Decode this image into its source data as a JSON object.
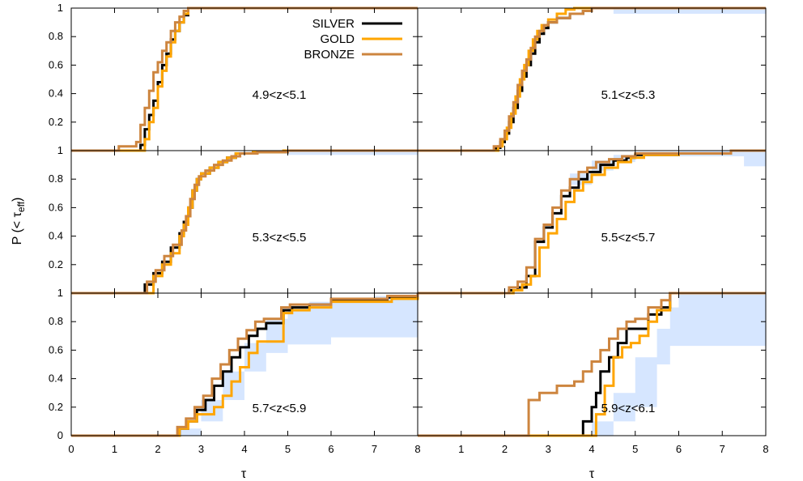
{
  "chart_data": {
    "type": "line",
    "ylabel": "P (< τ",
    "ylabel_sub": "eff",
    "ylabel_tail": ")",
    "xlabel": "τ",
    "xlim": [
      0,
      8
    ],
    "ylim": [
      0,
      1
    ],
    "x_ticks": [
      "0",
      "1",
      "2",
      "3",
      "4",
      "5",
      "6",
      "7",
      "8"
    ],
    "y_ticks": [
      "0",
      "0.2",
      "0.4",
      "0.6",
      "0.8",
      "1"
    ],
    "legend": {
      "placement": "top-right of first panel",
      "entries": [
        {
          "name": "SILVER",
          "color": "#000000"
        },
        {
          "name": "GOLD",
          "color": "#ffa500"
        },
        {
          "name": "BRONZE",
          "color": "#cd853f"
        }
      ]
    },
    "band_color": "#d6e6ff",
    "panels": [
      {
        "annotation": "4.9<z<5.1",
        "band": [],
        "series": [
          {
            "name": "SILVER",
            "x": [
              0,
              1.55,
              1.6,
              1.7,
              1.8,
              1.9,
              2.0,
              2.1,
              2.2,
              2.3,
              2.4,
              2.5,
              2.6,
              2.7,
              2.8,
              8
            ],
            "y": [
              0,
              0,
              0.04,
              0.15,
              0.25,
              0.35,
              0.48,
              0.6,
              0.68,
              0.78,
              0.84,
              0.9,
              0.95,
              1,
              1,
              1
            ]
          },
          {
            "name": "GOLD",
            "x": [
              0,
              1.6,
              1.7,
              1.8,
              1.9,
              2.0,
              2.1,
              2.2,
              2.3,
              2.4,
              2.5,
              2.6,
              2.7,
              2.8,
              8
            ],
            "y": [
              0,
              0,
              0.08,
              0.2,
              0.3,
              0.45,
              0.56,
              0.66,
              0.76,
              0.84,
              0.9,
              0.96,
              1,
              1,
              1
            ]
          },
          {
            "name": "BRONZE",
            "x": [
              0,
              1.05,
              1.1,
              1.4,
              1.5,
              1.6,
              1.7,
              1.8,
              1.9,
              2.0,
              2.1,
              2.2,
              2.3,
              2.4,
              2.5,
              2.6,
              2.7,
              8
            ],
            "y": [
              0,
              0,
              0.03,
              0.03,
              0.06,
              0.18,
              0.3,
              0.42,
              0.55,
              0.62,
              0.7,
              0.76,
              0.84,
              0.9,
              0.94,
              0.98,
              1,
              1
            ]
          }
        ]
      },
      {
        "annotation": "5.1<z<5.3",
        "band": [
          [
            0,
            0,
            0
          ],
          [
            4.0,
            0.99,
            1
          ],
          [
            4.5,
            0.96,
            1
          ],
          [
            8,
            0.96,
            1
          ]
        ],
        "series": [
          {
            "name": "SILVER",
            "x": [
              0,
              1.6,
              1.8,
              1.9,
              2.0,
              2.1,
              2.2,
              2.3,
              2.4,
              2.5,
              2.6,
              2.7,
              2.8,
              2.9,
              3.0,
              3.2,
              3.5,
              3.8,
              4.0,
              8
            ],
            "y": [
              0,
              0,
              0.02,
              0.06,
              0.12,
              0.2,
              0.3,
              0.42,
              0.52,
              0.6,
              0.68,
              0.76,
              0.82,
              0.86,
              0.9,
              0.93,
              0.96,
              0.98,
              1,
              1
            ]
          },
          {
            "name": "GOLD",
            "x": [
              0,
              1.65,
              1.85,
              1.95,
              2.05,
              2.15,
              2.25,
              2.35,
              2.45,
              2.55,
              2.65,
              2.75,
              2.85,
              3.0,
              3.2,
              3.4,
              3.6,
              8
            ],
            "y": [
              0,
              0,
              0.03,
              0.08,
              0.16,
              0.26,
              0.38,
              0.5,
              0.6,
              0.7,
              0.78,
              0.84,
              0.88,
              0.92,
              0.96,
              0.99,
              1,
              1
            ]
          },
          {
            "name": "BRONZE",
            "x": [
              0,
              1.55,
              1.75,
              1.9,
              2.0,
              2.1,
              2.2,
              2.3,
              2.4,
              2.5,
              2.6,
              2.7,
              2.8,
              2.9,
              3.0,
              3.2,
              3.5,
              3.8,
              4.0,
              8
            ],
            "y": [
              0,
              0,
              0.03,
              0.08,
              0.14,
              0.24,
              0.34,
              0.46,
              0.56,
              0.64,
              0.72,
              0.8,
              0.84,
              0.88,
              0.9,
              0.93,
              0.96,
              0.98,
              1,
              1
            ]
          }
        ]
      },
      {
        "annotation": "5.3<z<5.5",
        "band": [
          [
            0,
            0,
            0
          ],
          [
            4.5,
            0.99,
            1
          ],
          [
            5,
            0.97,
            1
          ],
          [
            8,
            0.97,
            1
          ]
        ],
        "series": [
          {
            "name": "SILVER",
            "x": [
              0,
              1.55,
              1.7,
              1.9,
              2.1,
              2.3,
              2.5,
              2.6,
              2.7,
              2.8,
              2.9,
              3.0,
              3.2,
              3.4,
              3.6,
              3.8,
              4.2,
              5.0,
              8
            ],
            "y": [
              0,
              0,
              0.06,
              0.14,
              0.22,
              0.32,
              0.42,
              0.5,
              0.6,
              0.72,
              0.8,
              0.84,
              0.88,
              0.92,
              0.95,
              0.98,
              0.99,
              1,
              1
            ]
          },
          {
            "name": "GOLD",
            "x": [
              0,
              1.75,
              1.9,
              2.1,
              2.3,
              2.5,
              2.6,
              2.7,
              2.8,
              2.9,
              3.0,
              3.2,
              3.4,
              3.6,
              3.8,
              4.2,
              4.9,
              8
            ],
            "y": [
              0,
              0,
              0.12,
              0.2,
              0.28,
              0.4,
              0.48,
              0.6,
              0.72,
              0.8,
              0.84,
              0.88,
              0.92,
              0.95,
              0.98,
              0.99,
              1,
              1
            ]
          },
          {
            "name": "BRONZE",
            "x": [
              0,
              1.6,
              1.75,
              1.95,
              2.15,
              2.35,
              2.55,
              2.65,
              2.75,
              2.85,
              2.95,
              3.1,
              3.3,
              3.5,
              3.7,
              3.9,
              4.3,
              5.0,
              8
            ],
            "y": [
              0,
              0,
              0.08,
              0.16,
              0.26,
              0.34,
              0.44,
              0.54,
              0.66,
              0.76,
              0.82,
              0.86,
              0.9,
              0.93,
              0.96,
              0.98,
              0.99,
              1,
              1
            ]
          }
        ]
      },
      {
        "annotation": "5.5<z<5.7",
        "band": [
          [
            0,
            0,
            0
          ],
          [
            2.5,
            0.0,
            0
          ],
          [
            3.5,
            0.76,
            0.84
          ],
          [
            4.0,
            0.86,
            0.93
          ],
          [
            4.5,
            0.92,
            0.97
          ],
          [
            5.0,
            0.96,
            0.99
          ],
          [
            6.0,
            0.96,
            1
          ],
          [
            7.5,
            0.89,
            1
          ],
          [
            8,
            0.89,
            1
          ]
        ],
        "series": [
          {
            "name": "SILVER",
            "x": [
              0,
              1.9,
              2.1,
              2.3,
              2.5,
              2.7,
              2.9,
              3.1,
              3.3,
              3.5,
              3.7,
              3.9,
              4.2,
              4.5,
              4.8,
              5.0,
              6.0,
              7.2,
              8
            ],
            "y": [
              0,
              0,
              0.02,
              0.04,
              0.12,
              0.36,
              0.46,
              0.56,
              0.68,
              0.74,
              0.8,
              0.85,
              0.9,
              0.93,
              0.95,
              0.97,
              0.98,
              1,
              1
            ]
          },
          {
            "name": "GOLD",
            "x": [
              0,
              2.0,
              2.2,
              2.4,
              2.6,
              2.8,
              3.0,
              3.2,
              3.4,
              3.6,
              3.8,
              4.0,
              4.3,
              4.6,
              4.9,
              5.2,
              6.0,
              7.2,
              8
            ],
            "y": [
              0,
              0,
              0.02,
              0.06,
              0.12,
              0.32,
              0.42,
              0.52,
              0.64,
              0.72,
              0.78,
              0.83,
              0.88,
              0.92,
              0.95,
              0.97,
              0.98,
              1,
              1
            ]
          },
          {
            "name": "BRONZE",
            "x": [
              0,
              1.9,
              2.1,
              2.3,
              2.5,
              2.7,
              2.9,
              3.1,
              3.3,
              3.5,
              3.7,
              3.9,
              4.1,
              4.4,
              4.7,
              5.0,
              6.0,
              7.2,
              8
            ],
            "y": [
              0,
              0,
              0.04,
              0.08,
              0.18,
              0.38,
              0.48,
              0.6,
              0.72,
              0.8,
              0.85,
              0.88,
              0.92,
              0.94,
              0.96,
              0.98,
              0.98,
              1,
              1
            ]
          }
        ]
      },
      {
        "annotation": "5.7<z<5.9",
        "band": [
          [
            0,
            0,
            0
          ],
          [
            2.5,
            0.0,
            0.05
          ],
          [
            3.0,
            0.1,
            0.25
          ],
          [
            3.5,
            0.25,
            0.45
          ],
          [
            4.0,
            0.45,
            0.65
          ],
          [
            4.5,
            0.58,
            0.82
          ],
          [
            5.0,
            0.64,
            0.9
          ],
          [
            5.5,
            0.64,
            0.94
          ],
          [
            6.0,
            0.69,
            0.96
          ],
          [
            7.0,
            0.69,
            0.98
          ],
          [
            8,
            0.69,
            1
          ]
        ],
        "series": [
          {
            "name": "SILVER",
            "x": [
              0,
              2.35,
              2.5,
              2.7,
              2.9,
              3.1,
              3.3,
              3.5,
              3.7,
              3.9,
              4.1,
              4.3,
              4.5,
              4.9,
              5.1,
              5.5,
              6.0,
              7.3,
              8
            ],
            "y": [
              0,
              0,
              0.05,
              0.1,
              0.18,
              0.25,
              0.35,
              0.45,
              0.55,
              0.62,
              0.7,
              0.75,
              0.79,
              0.88,
              0.9,
              0.92,
              0.95,
              0.97,
              1
            ]
          },
          {
            "name": "GOLD",
            "x": [
              0,
              2.3,
              2.5,
              2.7,
              2.9,
              3.1,
              3.3,
              3.5,
              3.7,
              3.9,
              4.1,
              4.3,
              4.5,
              4.9,
              5.1,
              5.5,
              6.0,
              7.4,
              8
            ],
            "y": [
              0,
              0,
              0.05,
              0.1,
              0.15,
              0.15,
              0.2,
              0.28,
              0.38,
              0.48,
              0.58,
              0.66,
              0.66,
              0.86,
              0.88,
              0.9,
              0.94,
              0.96,
              1
            ]
          },
          {
            "name": "BRONZE",
            "x": [
              0,
              2.25,
              2.45,
              2.65,
              2.85,
              3.05,
              3.25,
              3.45,
              3.65,
              3.85,
              4.05,
              4.25,
              4.45,
              4.85,
              5.05,
              5.45,
              6.0,
              7.3,
              8
            ],
            "y": [
              0,
              0,
              0.06,
              0.12,
              0.2,
              0.28,
              0.4,
              0.5,
              0.6,
              0.68,
              0.74,
              0.8,
              0.82,
              0.9,
              0.92,
              0.92,
              0.96,
              0.98,
              1
            ]
          }
        ]
      },
      {
        "annotation": "5.9<z<6.1",
        "band": [
          [
            0,
            0,
            0
          ],
          [
            3.6,
            0.0,
            0
          ],
          [
            4.0,
            0.0,
            0.1
          ],
          [
            4.5,
            0.1,
            0.3
          ],
          [
            5.0,
            0.2,
            0.55
          ],
          [
            5.5,
            0.5,
            0.75
          ],
          [
            5.8,
            0.63,
            0.9
          ],
          [
            6.0,
            0.63,
            1
          ],
          [
            8,
            0.63,
            1
          ]
        ],
        "series": [
          {
            "name": "SILVER",
            "x": [
              0,
              3.75,
              3.8,
              3.9,
              4.0,
              4.1,
              4.2,
              4.4,
              4.6,
              4.8,
              5.0,
              5.3,
              5.6,
              5.8,
              8
            ],
            "y": [
              0,
              0,
              0.1,
              0.1,
              0.2,
              0.3,
              0.45,
              0.55,
              0.65,
              0.75,
              0.75,
              0.85,
              0.9,
              1,
              1
            ]
          },
          {
            "name": "GOLD",
            "x": [
              0,
              4.0,
              4.1,
              4.3,
              4.5,
              4.7,
              4.9,
              5.1,
              5.3,
              5.5,
              5.8,
              8
            ],
            "y": [
              0,
              0,
              0.15,
              0.35,
              0.55,
              0.62,
              0.65,
              0.7,
              0.8,
              0.88,
              1,
              1
            ]
          },
          {
            "name": "BRONZE",
            "x": [
              0,
              2.45,
              2.55,
              2.8,
              3.0,
              3.2,
              3.6,
              3.8,
              4.0,
              4.2,
              4.4,
              4.6,
              4.8,
              5.0,
              5.3,
              5.6,
              5.8,
              8
            ],
            "y": [
              0,
              0,
              0.25,
              0.3,
              0.3,
              0.35,
              0.38,
              0.45,
              0.52,
              0.6,
              0.68,
              0.75,
              0.8,
              0.82,
              0.9,
              0.95,
              1,
              1
            ]
          }
        ]
      }
    ]
  }
}
